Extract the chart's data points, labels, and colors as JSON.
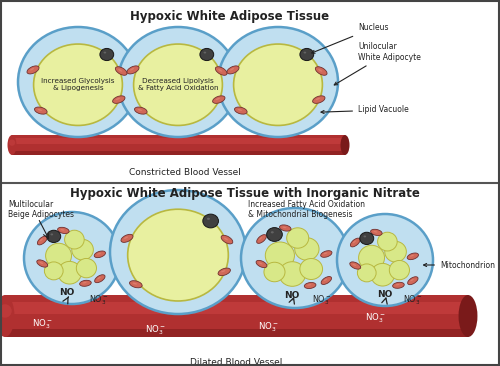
{
  "title_top": "Hypoxic White Adipose Tissue",
  "title_bottom": "Hypoxic White Adipose Tissue with Inorganic Nitrate",
  "label_constricted": "Constricted Blood Vessel",
  "label_dilated": "Dilated Blood Vessel",
  "label_nucleus": "Nucleus",
  "label_unilocular": "Unilocular\nWhite Adipocyte",
  "label_lipid": "Lipid Vacuole",
  "label_glycolysis": "Increased Glycolysis\n& Lipogenesis",
  "label_lipolysis": "Decreased Lipolysis\n& Fatty Acid Oxidation",
  "label_multilocular": "Multilocular\nBeige Adipocytes",
  "label_fatty_acid": "Increased Fatty Acid Oxidation\n& Mitochondrial Biogenesis",
  "label_mitochondrion": "Mitochondrion",
  "vessel_color": "#b03030",
  "vessel_highlight": "#cc4444",
  "vessel_shadow": "#7a1a1a",
  "cell_outer_color": "#c0dff0",
  "cell_outer_edge": "#5a9fc8",
  "lipid_color": "#e8f0a0",
  "lipid_edge": "#b8b840",
  "nucleus_color": "#404040",
  "mito_color": "#d06858",
  "mito_highlight": "#e89080",
  "small_lipid_color": "#d8e888",
  "arrow_color": "#222222",
  "border_color": "#444444",
  "text_color": "#222222",
  "divider_color": "#555555"
}
